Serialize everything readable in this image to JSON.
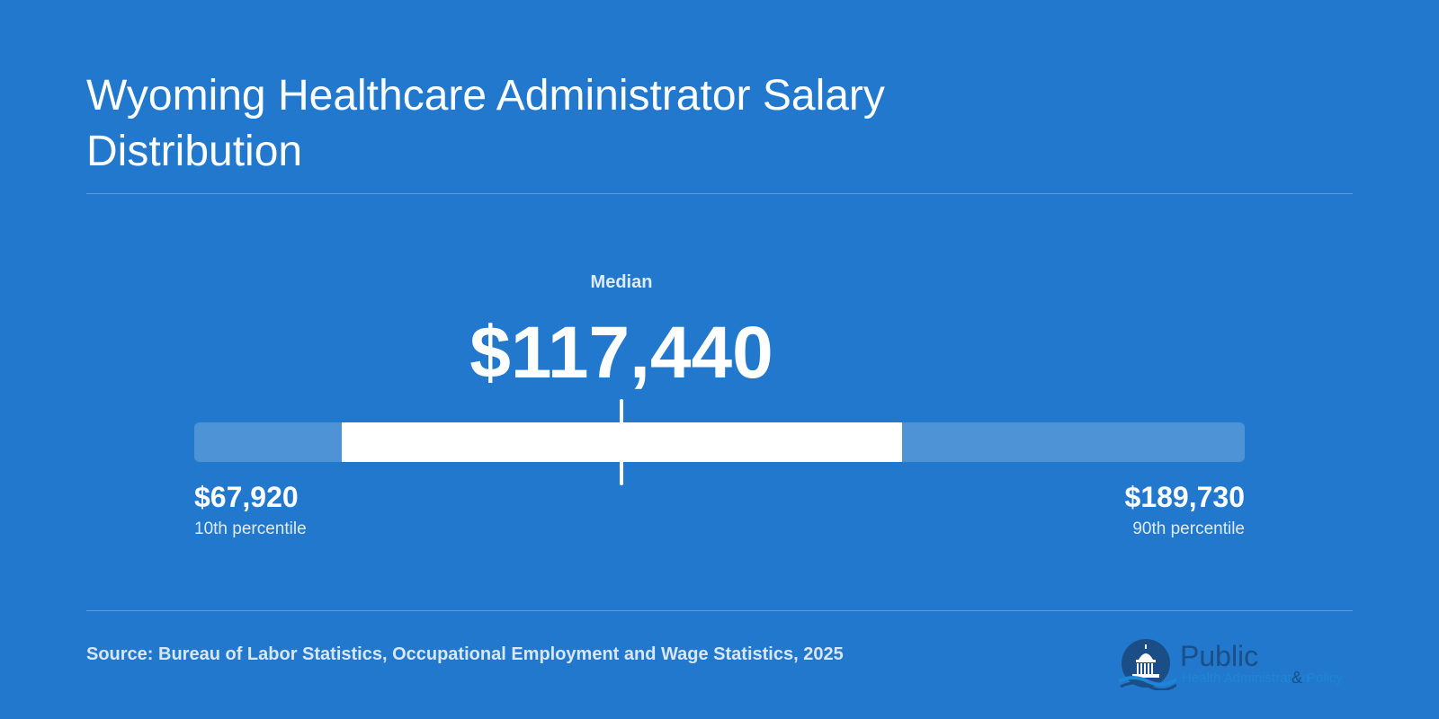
{
  "title": "Wyoming Healthcare Administrator Salary Distribution",
  "median_label": "Median",
  "source": "Source: Bureau of Labor Statistics, Occupational Employment and Wage Statistics, 2025",
  "chart_data": {
    "type": "range",
    "title": "Wyoming Healthcare Administrator Salary Distribution",
    "range_min": 67920,
    "range_max": 189730,
    "iqr_low": 85000,
    "iqr_high": 150000,
    "median": 117440,
    "percentiles": {
      "p10": {
        "value": 67920,
        "label": "$67,920",
        "caption": "10th percentile"
      },
      "median": {
        "value": 117440,
        "label": "$117,440",
        "caption": "Median"
      },
      "p90": {
        "value": 189730,
        "label": "$189,730",
        "caption": "90th percentile"
      }
    }
  },
  "logo": {
    "word": "Public",
    "sub1": "Health Administration",
    "amp": "&",
    "sub2": "Policy"
  },
  "colors": {
    "background": "#2178CC",
    "track": "rgba(255,255,255,0.2)",
    "iqr_bar": "#ffffff",
    "logo_dark": "#1B4E86",
    "logo_light": "#1E86D6"
  }
}
